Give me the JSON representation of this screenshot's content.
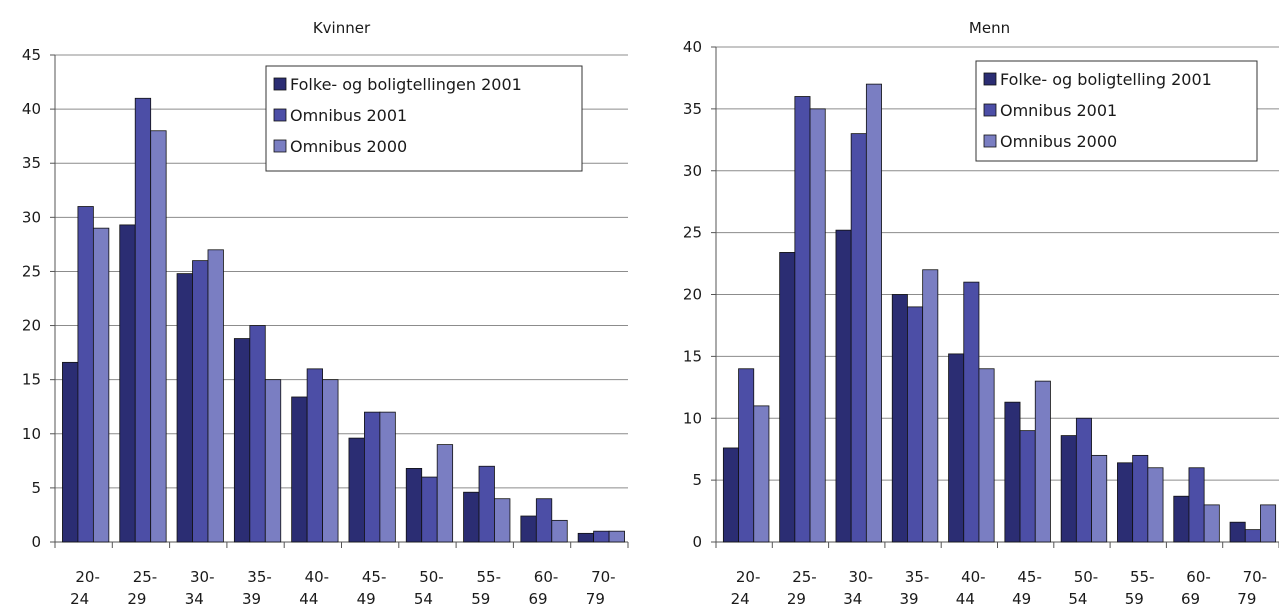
{
  "chart_data": [
    {
      "type": "bar",
      "title": "Kvinner",
      "categories": [
        [
          "20-",
          "24"
        ],
        [
          "25-",
          "29"
        ],
        [
          "30-",
          "34"
        ],
        [
          "35-",
          "39"
        ],
        [
          "40-",
          "44"
        ],
        [
          "45-",
          "49"
        ],
        [
          "50-",
          "54"
        ],
        [
          "55-",
          "59"
        ],
        [
          "60-",
          "69"
        ],
        [
          "70-",
          "79"
        ]
      ],
      "ylim": [
        0,
        45
      ],
      "yticks": [
        0,
        5,
        10,
        15,
        20,
        25,
        30,
        35,
        40,
        45
      ],
      "grid": true,
      "legend_position": "top-right",
      "series": [
        {
          "name": "Folke- og boligtellingen 2001",
          "color": "#2b2d73",
          "values": [
            16.6,
            29.3,
            24.8,
            18.8,
            13.4,
            9.6,
            6.8,
            4.6,
            2.4,
            0.8
          ]
        },
        {
          "name": "Omnibus 2001",
          "color": "#4c4ea6",
          "values": [
            31,
            41,
            26,
            20,
            16,
            12,
            6,
            7,
            4,
            1
          ]
        },
        {
          "name": "Omnibus 2000",
          "color": "#7a7ec2",
          "values": [
            29,
            38,
            27,
            15,
            15,
            12,
            9,
            4,
            2,
            1
          ]
        }
      ]
    },
    {
      "type": "bar",
      "title": "Menn",
      "categories": [
        [
          "20-",
          "24"
        ],
        [
          "25-",
          "29"
        ],
        [
          "30-",
          "34"
        ],
        [
          "35-",
          "39"
        ],
        [
          "40-",
          "44"
        ],
        [
          "45-",
          "49"
        ],
        [
          "50-",
          "54"
        ],
        [
          "55-",
          "59"
        ],
        [
          "60-",
          "69"
        ],
        [
          "70-",
          "79"
        ]
      ],
      "ylim": [
        0,
        40
      ],
      "yticks": [
        0,
        5,
        10,
        15,
        20,
        25,
        30,
        35,
        40
      ],
      "grid": true,
      "legend_position": "top-right",
      "series": [
        {
          "name": "Folke- og boligtelling 2001",
          "color": "#2b2d73",
          "values": [
            7.6,
            23.4,
            25.2,
            20,
            15.2,
            11.3,
            8.6,
            6.4,
            3.7,
            1.6
          ]
        },
        {
          "name": "Omnibus 2001",
          "color": "#4c4ea6",
          "values": [
            14,
            36,
            33,
            19,
            21,
            9,
            10,
            7,
            6,
            1
          ]
        },
        {
          "name": "Omnibus 2000",
          "color": "#7a7ec2",
          "values": [
            11,
            35,
            37,
            22,
            14,
            13,
            7,
            6,
            3,
            3
          ]
        }
      ]
    }
  ]
}
